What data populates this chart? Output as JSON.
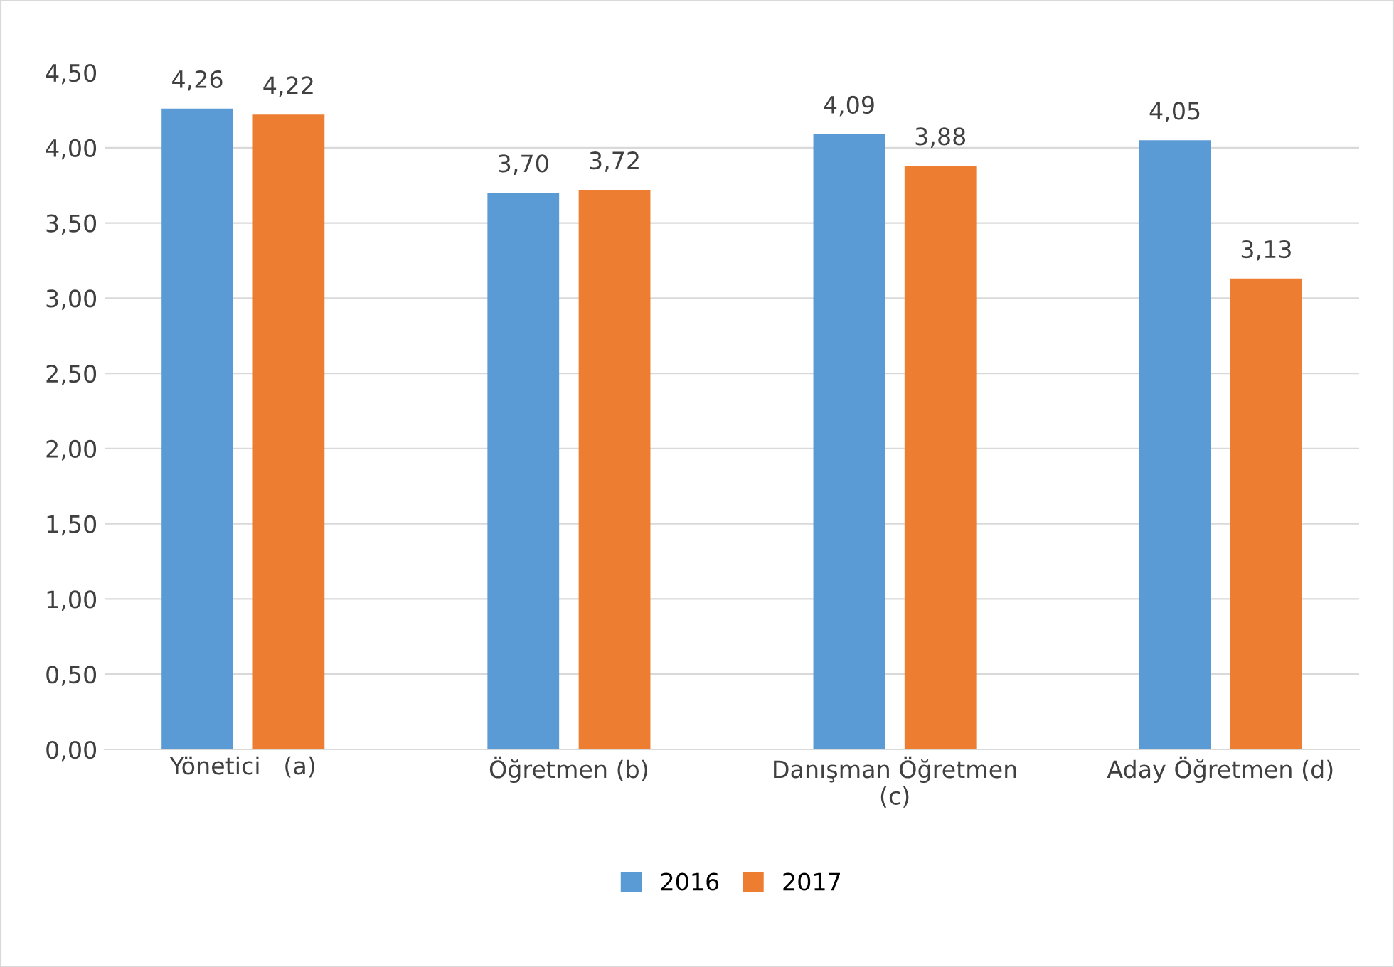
{
  "chart_data": {
    "type": "bar",
    "categories": [
      "Yönetici   (a)",
      "Öğretmen (b)",
      "Danışman Öğretmen\n(c)",
      "Aday Öğretmen (d)"
    ],
    "series": [
      {
        "name": "2016",
        "color": "#5b9bd5",
        "values": [
          4.26,
          3.7,
          4.09,
          4.05
        ],
        "value_labels": [
          "4,26",
          "3,70",
          "4,09",
          "4,05"
        ]
      },
      {
        "name": "2017",
        "color": "#ed7d31",
        "values": [
          4.22,
          3.72,
          3.88,
          3.13
        ],
        "value_labels": [
          "4,22",
          "3,72",
          "3,88",
          "3,13"
        ]
      }
    ],
    "ylim": [
      0,
      4.5
    ],
    "yticks": [
      {
        "value": 0,
        "label": "0,00"
      },
      {
        "value": 0.5,
        "label": "0,50"
      },
      {
        "value": 1,
        "label": "1,00"
      },
      {
        "value": 1.5,
        "label": "1,50"
      },
      {
        "value": 2,
        "label": "2,00"
      },
      {
        "value": 2.5,
        "label": "2,50"
      },
      {
        "value": 3,
        "label": "3,00"
      },
      {
        "value": 3.5,
        "label": "3,50"
      },
      {
        "value": 4,
        "label": "4,00"
      },
      {
        "value": 4.5,
        "label": "4,50"
      }
    ],
    "grid": "y",
    "legend": "bottom"
  }
}
